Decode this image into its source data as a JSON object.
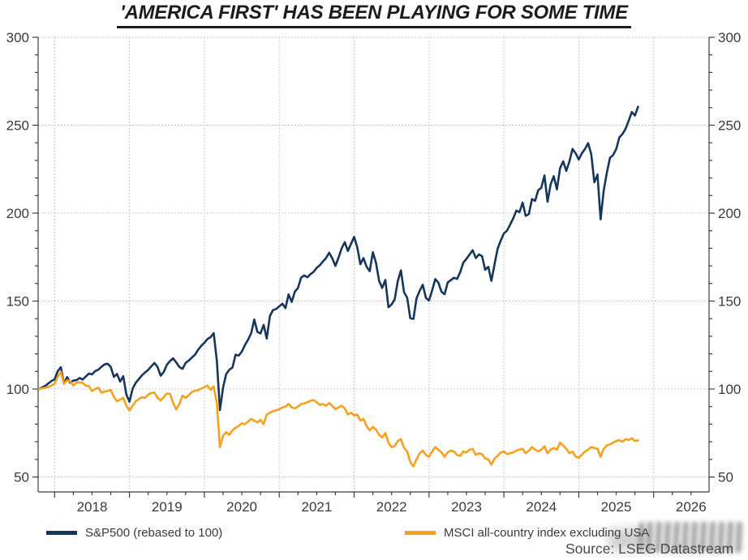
{
  "title": "'AMERICA FIRST' HAS BEEN PLAYING FOR SOME TIME",
  "source": "Source: LSEG Datastream",
  "legend": [
    {
      "key": "sp500",
      "label": "S&P500 (rebased to 100)",
      "color": "#16365c"
    },
    {
      "key": "msci_ex_usa",
      "label": "MSCI all-country index excluding USA",
      "color": "#f7a01e"
    }
  ],
  "chart_data": {
    "type": "line",
    "title": "'AMERICA FIRST' HAS BEEN PLAYING FOR SOME TIME",
    "xlabel": "",
    "ylabel": "",
    "grid": "dotted gridlines at major ticks, horizontal and vertical",
    "legend_position": "bottom-left",
    "x_axis": {
      "unit": "year",
      "range": [
        2017.78,
        2026.74
      ],
      "year_tick_labels": [
        "2018",
        "2019",
        "2020",
        "2021",
        "2022",
        "2023",
        "2024",
        "2025",
        "2026"
      ],
      "major_tick_step_years": 1,
      "minor_tick_step_years": 0.25,
      "labels_centered_between_ticks": true
    },
    "y_axis": {
      "range": [
        41.5,
        300
      ],
      "major_ticks": [
        50,
        100,
        150,
        200,
        250,
        300
      ],
      "minor_tick_step": 10,
      "sides": [
        "left",
        "right"
      ]
    },
    "x_start_year": 2017.7917,
    "x_step_years": 0.0416667,
    "series": [
      {
        "key": "sp500",
        "name": "S&P500 (rebased to 100)",
        "color": "#16365c",
        "values": [
          100.0,
          100.9,
          101.8,
          103.2,
          104.6,
          105.5,
          110.2,
          112.4,
          103.0,
          106.8,
          103.6,
          104.8,
          105.0,
          106.3,
          105.4,
          107.1,
          108.8,
          108.3,
          110.2,
          111.0,
          112.6,
          114.0,
          114.4,
          112.6,
          106.9,
          108.6,
          104.2,
          107.3,
          96.8,
          92.8,
          100.2,
          103.5,
          105.6,
          107.8,
          109.4,
          110.9,
          112.9,
          114.8,
          112.5,
          107.6,
          109.8,
          113.9,
          115.9,
          117.5,
          115.1,
          112.5,
          111.5,
          114.8,
          116.2,
          117.9,
          119.5,
          122.3,
          124.6,
          126.3,
          128.5,
          129.5,
          131.8,
          116.0,
          88.0,
          101.0,
          108.5,
          111.0,
          112.2,
          119.5,
          119.0,
          121.3,
          125.0,
          128.0,
          131.7,
          139.5,
          132.5,
          131.6,
          136.5,
          128.7,
          141.5,
          144.9,
          145.5,
          147.0,
          148.5,
          146.0,
          153.8,
          149.5,
          155.3,
          157.5,
          163.3,
          164.6,
          163.5,
          165.3,
          166.6,
          168.9,
          170.4,
          172.5,
          174.5,
          177.5,
          174.3,
          170.0,
          174.7,
          179.9,
          183.5,
          178.5,
          182.6,
          186.5,
          180.5,
          171.0,
          174.5,
          169.5,
          167.0,
          177.8,
          171.9,
          161.5,
          157.5,
          162.0,
          146.5,
          148.1,
          151.0,
          161.3,
          167.5,
          155.1,
          151.9,
          140.3,
          139.9,
          151.5,
          155.8,
          159.3,
          151.8,
          150.3,
          156.1,
          162.5,
          160.5,
          155.3,
          153.9,
          160.6,
          161.9,
          163.3,
          162.6,
          166.5,
          171.9,
          174.0,
          176.5,
          178.9,
          174.5,
          176.5,
          175.6,
          167.8,
          169.5,
          161.5,
          171.0,
          179.8,
          184.5,
          188.5,
          190.0,
          193.5,
          197.0,
          201.5,
          200.5,
          206.0,
          198.5,
          199.5,
          208.0,
          207.0,
          213.0,
          214.5,
          221.5,
          206.5,
          216.5,
          221.0,
          213.5,
          225.5,
          229.5,
          224.0,
          229.5,
          236.5,
          234.0,
          230.5,
          234.0,
          236.5,
          239.8,
          233.5,
          217.5,
          222.0,
          196.5,
          213.0,
          223.0,
          231.5,
          233.0,
          236.5,
          243.0,
          245.0,
          248.0,
          252.5,
          257.5,
          255.5,
          260.5
        ]
      },
      {
        "key": "msci_ex_usa",
        "name": "MSCI all-country index excluding USA",
        "color": "#f7a01e",
        "values": [
          100.0,
          100.4,
          100.7,
          101.2,
          102.0,
          103.0,
          107.0,
          109.8,
          103.0,
          105.0,
          104.4,
          102.0,
          103.5,
          103.8,
          103.5,
          102.0,
          101.5,
          98.8,
          100.0,
          100.8,
          98.0,
          98.5,
          98.8,
          99.5,
          95.5,
          93.0,
          94.0,
          95.0,
          90.5,
          87.8,
          90.5,
          93.0,
          94.3,
          95.3,
          95.0,
          96.8,
          97.8,
          98.0,
          95.0,
          93.5,
          95.5,
          97.5,
          97.3,
          92.0,
          88.5,
          91.5,
          96.3,
          95.0,
          96.5,
          98.3,
          99.0,
          99.3,
          100.3,
          101.0,
          102.0,
          99.5,
          101.5,
          92.0,
          67.0,
          73.5,
          75.5,
          74.0,
          76.5,
          78.0,
          79.0,
          80.5,
          80.0,
          81.5,
          83.0,
          82.0,
          81.0,
          82.5,
          80.0,
          85.5,
          86.5,
          87.5,
          88.0,
          88.5,
          89.5,
          90.0,
          91.5,
          89.5,
          89.0,
          90.0,
          91.5,
          91.8,
          92.5,
          93.3,
          93.8,
          92.5,
          91.0,
          91.5,
          90.5,
          92.0,
          90.5,
          88.5,
          89.5,
          90.5,
          89.0,
          85.5,
          86.5,
          85.0,
          85.5,
          82.0,
          83.0,
          79.0,
          76.5,
          78.5,
          77.0,
          74.0,
          72.5,
          75.0,
          69.5,
          67.0,
          67.5,
          70.5,
          71.5,
          66.5,
          64.5,
          58.5,
          56.0,
          60.0,
          63.5,
          65.0,
          62.5,
          61.5,
          64.5,
          67.0,
          65.5,
          64.0,
          61.5,
          64.0,
          65.0,
          64.5,
          62.5,
          62.0,
          64.5,
          64.0,
          65.5,
          66.0,
          62.5,
          63.5,
          63.0,
          60.5,
          60.0,
          57.0,
          60.5,
          62.0,
          64.0,
          64.5,
          63.0,
          63.5,
          64.0,
          65.0,
          65.5,
          66.0,
          63.5,
          65.0,
          67.0,
          65.5,
          64.5,
          65.5,
          67.5,
          63.5,
          65.5,
          66.5,
          65.5,
          69.5,
          68.0,
          66.0,
          63.5,
          64.5,
          61.5,
          61.0,
          62.5,
          64.5,
          65.5,
          67.0,
          66.5,
          66.0,
          61.5,
          66.0,
          68.0,
          68.5,
          69.5,
          70.5,
          71.0,
          70.0,
          71.5,
          71.0,
          72.0,
          70.5,
          70.8
        ]
      }
    ]
  },
  "style": {
    "grid_color": "#b5b5b5",
    "axis_color": "#3c3c3c",
    "tick_label_color": "#3a3a3a"
  }
}
